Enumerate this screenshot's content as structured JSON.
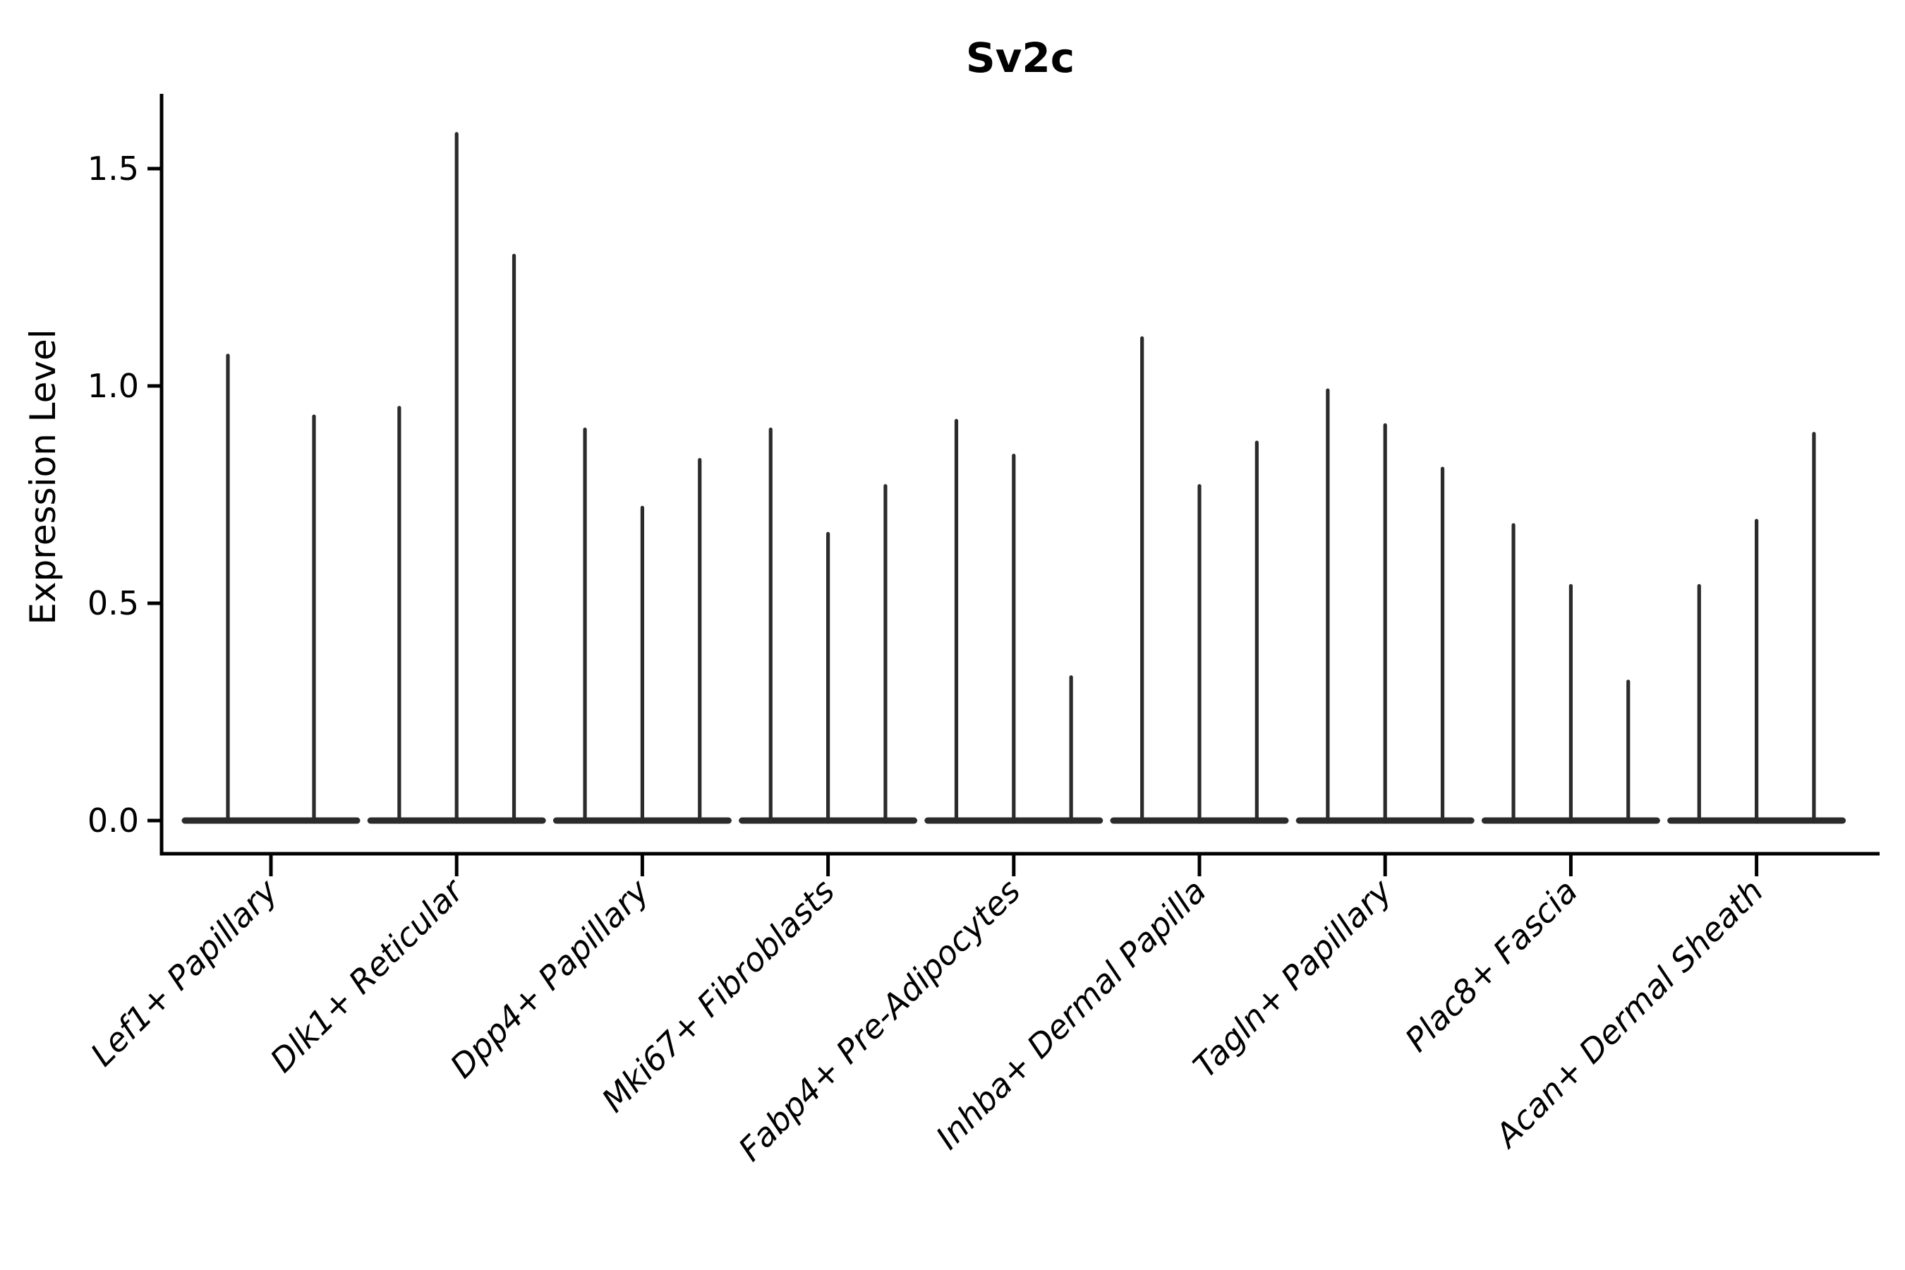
{
  "chart_data": {
    "type": "violin",
    "title": "Sv2c",
    "xlabel": "",
    "ylabel": "Expression Level",
    "ylim": [
      -0.076,
      1.67
    ],
    "yticks": [
      0.0,
      0.5,
      1.0,
      1.5
    ],
    "ytick_labels": [
      "0.0",
      "0.5",
      "1.0",
      "1.5"
    ],
    "grid": false,
    "legend": "none",
    "categories": [
      "Lef1+ Papillary",
      "Dlk1+ Reticular",
      "Dpp4+ Papillary",
      "Mki67+ Fibroblasts",
      "Fabp4+ Pre-Adipocytes",
      "Inhba+ Dermal Papilla",
      "Tagln+ Papillary",
      "Plac8+ Fascia",
      "Acan+ Dermal Sheath"
    ],
    "series_note": "Each category shows thin violins rising from a flat base at 0; values below are the peak (max) expression level of each violin spike, left to right within each category.",
    "violins": [
      {
        "category": "Lef1+ Papillary",
        "peaks": [
          1.07,
          0.93
        ]
      },
      {
        "category": "Dlk1+ Reticular",
        "peaks": [
          0.95,
          1.58,
          1.3
        ]
      },
      {
        "category": "Dpp4+ Papillary",
        "peaks": [
          0.9,
          0.72,
          0.83
        ]
      },
      {
        "category": "Mki67+ Fibroblasts",
        "peaks": [
          0.9,
          0.66,
          0.77
        ]
      },
      {
        "category": "Fabp4+ Pre-Adipocytes",
        "peaks": [
          0.92,
          0.84,
          0.33
        ]
      },
      {
        "category": "Inhba+ Dermal Papilla",
        "peaks": [
          1.11,
          0.77,
          0.87
        ]
      },
      {
        "category": "Tagln+ Papillary",
        "peaks": [
          0.99,
          0.91,
          0.81
        ]
      },
      {
        "category": "Plac8+ Fascia",
        "peaks": [
          0.68,
          0.54,
          0.32
        ]
      },
      {
        "category": "Acan+ Dermal Sheath",
        "peaks": [
          0.54,
          0.69,
          0.89
        ]
      }
    ],
    "colors": {
      "violin_stroke": "#2b2b2b",
      "axis_stroke": "#000000",
      "text": "#000000",
      "background": "#ffffff"
    }
  }
}
